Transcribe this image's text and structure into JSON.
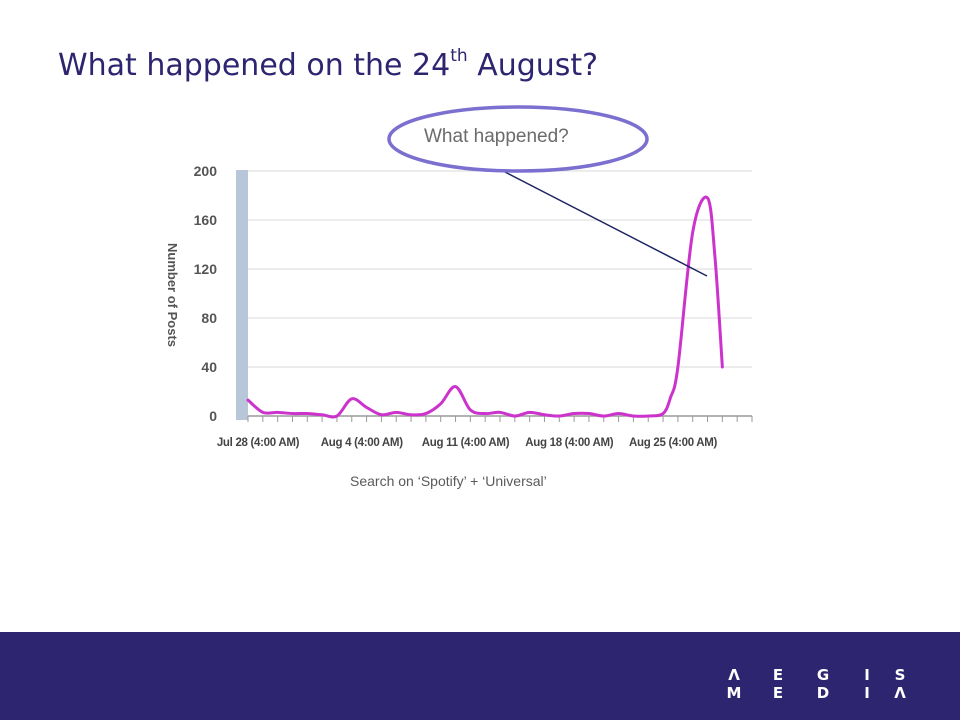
{
  "title": {
    "main": "What happened on the 24",
    "sup": "th",
    "tail": " August?"
  },
  "callout": {
    "text": "What happened?",
    "outline_color": "#7b6fd0"
  },
  "caption": "Search on ‘Spotify’ + ‘Universal’",
  "brand": {
    "top_row": [
      "Λ",
      "E",
      "G",
      "I",
      "S"
    ],
    "bottom_row": [
      "M",
      "E",
      "D",
      "I",
      "Λ"
    ]
  },
  "colors": {
    "primary": "#2d2570",
    "series": "#cc33cc",
    "axis_bar": "#b7c7d9"
  },
  "chart_data": {
    "type": "line",
    "ylabel": "Number of Posts",
    "ylim": [
      0,
      200
    ],
    "yticks": [
      0,
      40,
      80,
      120,
      160,
      200
    ],
    "xlim": [
      0,
      34
    ],
    "xticks": [
      {
        "x": 0,
        "label": "Jul 28 (4:00 AM)"
      },
      {
        "x": 7,
        "label": "Aug 4 (4:00 AM)"
      },
      {
        "x": 14,
        "label": "Aug 11 (4:00 AM)"
      },
      {
        "x": 21,
        "label": "Aug 18 (4:00 AM)"
      },
      {
        "x": 28,
        "label": "Aug 25 (4:00 AM)"
      }
    ],
    "grid": true,
    "series": [
      {
        "x": [
          0,
          1,
          2,
          3,
          4,
          5,
          6,
          7,
          8,
          9,
          10,
          11,
          12,
          13,
          14,
          15,
          16,
          17,
          18,
          19,
          20,
          21,
          22,
          23,
          24,
          25,
          26,
          27,
          28,
          28.5,
          29,
          30,
          31,
          31.5,
          32
        ],
        "values": [
          13,
          3,
          3,
          2,
          2,
          1,
          0,
          14,
          7,
          1,
          3,
          1,
          2,
          10,
          24,
          5,
          2,
          3,
          0,
          3,
          1,
          0,
          2,
          2,
          0,
          2,
          0,
          0,
          2,
          15,
          40,
          150,
          178,
          130,
          40
        ]
      }
    ]
  }
}
